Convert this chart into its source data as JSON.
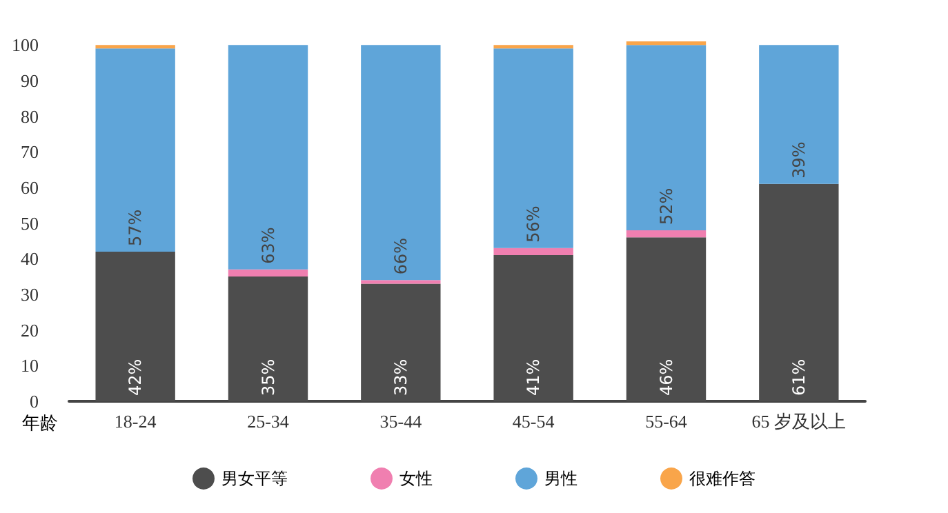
{
  "chart_data": {
    "type": "bar",
    "stacked": true,
    "xlabel": "年龄",
    "categories": [
      "18-24",
      "25-34",
      "35-44",
      "45-54",
      "55-64",
      "65 岁及以上"
    ],
    "ylim": [
      0,
      101
    ],
    "yticks": [
      0,
      10,
      20,
      30,
      40,
      50,
      60,
      70,
      80,
      90,
      100
    ],
    "grid": false,
    "legend": "bottom",
    "series": [
      {
        "name": "男女平等",
        "color": "#4d4d4d",
        "values": [
          42,
          35,
          33,
          41,
          46,
          61
        ],
        "value_labels": [
          "42%",
          "35%",
          "33%",
          "41%",
          "46%",
          "61%"
        ]
      },
      {
        "name": "女性",
        "color": "#f07fb0",
        "values": [
          0,
          2,
          1,
          2,
          2,
          0
        ]
      },
      {
        "name": "男性",
        "color": "#5fa5d9",
        "values": [
          57,
          63,
          66,
          56,
          52,
          39
        ],
        "value_labels": [
          "57%",
          "63%",
          "66%",
          "56%",
          "52%",
          "39%"
        ]
      },
      {
        "name": "很难作答",
        "color": "#f9a54a",
        "values": [
          1,
          0,
          0,
          1,
          1,
          0
        ]
      }
    ]
  }
}
